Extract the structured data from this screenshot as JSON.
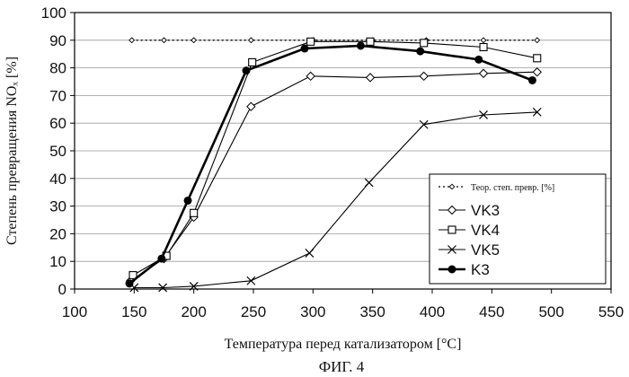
{
  "chart_data": {
    "type": "line",
    "xlabel": "Температура перед катализатором [°C]",
    "ylabel": "Степень превращения NOₓ [%]",
    "caption": "ФИГ. 4",
    "xlim": [
      100,
      550
    ],
    "ylim": [
      0,
      100
    ],
    "xticks": [
      "100",
      "150",
      "200",
      "250",
      "300",
      "350",
      "400",
      "450",
      "500",
      "550"
    ],
    "yticks": [
      "0",
      "10",
      "20",
      "30",
      "40",
      "50",
      "60",
      "70",
      "80",
      "90",
      "100"
    ],
    "legend_position": "lower-right",
    "series": [
      {
        "name": "Теор. степ. превр. [%]",
        "marker": "small-diamond",
        "line": "dotted",
        "points": [
          [
            148,
            90
          ],
          [
            175,
            90
          ],
          [
            200,
            90
          ],
          [
            248,
            90
          ],
          [
            300,
            90
          ],
          [
            350,
            90
          ],
          [
            395,
            90
          ],
          [
            443,
            90
          ],
          [
            488,
            90
          ]
        ]
      },
      {
        "name": "VK3",
        "marker": "diamond-open",
        "line": "solid-thin",
        "points": [
          [
            147,
            3
          ],
          [
            175,
            11
          ],
          [
            200,
            26
          ],
          [
            248,
            66
          ],
          [
            298,
            77
          ],
          [
            348,
            76.5
          ],
          [
            393,
            77
          ],
          [
            443,
            78
          ],
          [
            488,
            78.5
          ]
        ]
      },
      {
        "name": "VK4",
        "marker": "square-open",
        "line": "solid-thin",
        "points": [
          [
            149,
            5
          ],
          [
            177,
            12
          ],
          [
            200,
            27.5
          ],
          [
            249,
            82
          ],
          [
            298,
            89.5
          ],
          [
            348,
            89.5
          ],
          [
            393,
            89
          ],
          [
            443,
            87.5
          ],
          [
            488,
            83.5
          ]
        ]
      },
      {
        "name": "VK5",
        "marker": "x",
        "line": "solid-thin",
        "points": [
          [
            150,
            0.5
          ],
          [
            174,
            0.5
          ],
          [
            200,
            1
          ],
          [
            248,
            3
          ],
          [
            297,
            13
          ],
          [
            347,
            38.5
          ],
          [
            393,
            59.5
          ],
          [
            443,
            63
          ],
          [
            488,
            64
          ]
        ]
      },
      {
        "name": "K3",
        "marker": "circle-filled",
        "line": "solid-thick",
        "points": [
          [
            146,
            2
          ],
          [
            173,
            11
          ],
          [
            195,
            32
          ],
          [
            244,
            79
          ],
          [
            293,
            87
          ],
          [
            340,
            88
          ],
          [
            390,
            86
          ],
          [
            439,
            83
          ],
          [
            484,
            75.5
          ]
        ]
      }
    ]
  }
}
